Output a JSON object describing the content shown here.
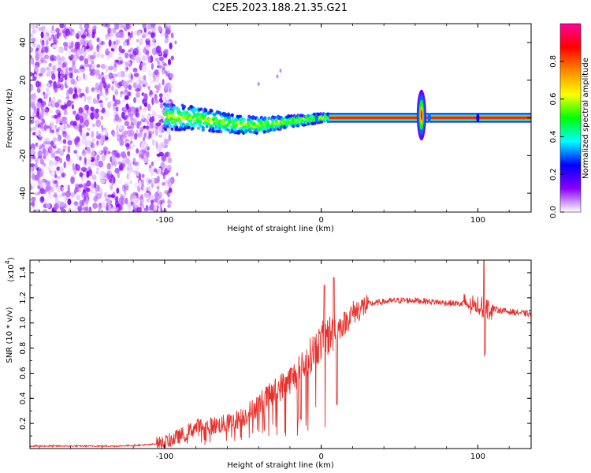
{
  "title": "C2E5.2023.188.21.35.G21",
  "colors": {
    "snr_line": "#e8302c",
    "axis": "#000000",
    "background": "#ffffff"
  },
  "chart_data": [
    {
      "type": "heatmap",
      "xlabel": "Height of straight line (km)",
      "ylabel": "Frequency (Hz)",
      "xlim": [
        -186,
        134
      ],
      "ylim": [
        -50,
        50
      ],
      "x_ticks": [
        {
          "v": -100,
          "label": "-100"
        },
        {
          "v": 0,
          "label": "0"
        },
        {
          "v": 100,
          "label": "100"
        }
      ],
      "y_ticks": [
        {
          "v": -40,
          "label": "-40"
        },
        {
          "v": -20,
          "label": "-20"
        },
        {
          "v": 0,
          "label": "0"
        },
        {
          "v": 20,
          "label": "20"
        },
        {
          "v": 40,
          "label": "40"
        }
      ],
      "colorbar": {
        "label": "Normalized spectral amplitude",
        "range": [
          0,
          1
        ],
        "ticks": [
          {
            "v": 0.0,
            "label": "0.0"
          },
          {
            "v": 0.2,
            "label": "0.2"
          },
          {
            "v": 0.4,
            "label": "0.4"
          },
          {
            "v": 0.6,
            "label": "0.6"
          },
          {
            "v": 0.8,
            "label": "0.8"
          }
        ],
        "colormap": [
          "#ffffff",
          "#8800ff",
          "#0000ff",
          "#00ffff",
          "#00ff00",
          "#ffff00",
          "#ff8800",
          "#ff0000",
          "#ff0099"
        ]
      },
      "features": {
        "noise_region_x": [
          -186,
          -95
        ],
        "signal_start_x": -100,
        "signal_track": [
          {
            "x": -100,
            "y": 0.5
          },
          {
            "x": -80,
            "y": 0
          },
          {
            "x": -60,
            "y": -3
          },
          {
            "x": -40,
            "y": -4
          },
          {
            "x": -20,
            "y": -2
          },
          {
            "x": 0,
            "y": 0
          },
          {
            "x": 60,
            "y": 0
          },
          {
            "x": 134,
            "y": 0
          }
        ],
        "burst_x": 64,
        "burst_y_range": [
          -12,
          15
        ]
      }
    },
    {
      "type": "line",
      "xlabel": "Height of straight line (km)",
      "ylabel": "SNR (10 * v/v)",
      "y_scale_label": "(x10",
      "y_scale_exp": "4",
      "y_multiplier": 10000,
      "xlim": [
        -186,
        134
      ],
      "ylim": [
        0,
        1.5
      ],
      "x_ticks": [
        {
          "v": -100,
          "label": "-100"
        },
        {
          "v": 0,
          "label": "0"
        },
        {
          "v": 100,
          "label": "100"
        }
      ],
      "y_ticks": [
        {
          "v": 0.2,
          "label": "0.2"
        },
        {
          "v": 0.4,
          "label": "0.4"
        },
        {
          "v": 0.6,
          "label": "0.6"
        },
        {
          "v": 0.8,
          "label": "0.8"
        },
        {
          "v": 1.0,
          "label": "1.0"
        },
        {
          "v": 1.2,
          "label": "1.2"
        },
        {
          "v": 1.4,
          "label": "1.4"
        }
      ],
      "series": [
        {
          "x": [
            -186,
            -160,
            -130,
            -110,
            -100,
            -90,
            -80,
            -70,
            -60,
            -50,
            -40,
            -30,
            -20,
            -15,
            -10,
            -5,
            0,
            5,
            10,
            15,
            20,
            30,
            40,
            50,
            60,
            70,
            80,
            90,
            100,
            105,
            110,
            120,
            134
          ],
          "y": [
            0.02,
            0.02,
            0.02,
            0.03,
            0.05,
            0.1,
            0.17,
            0.18,
            0.2,
            0.25,
            0.35,
            0.45,
            0.55,
            0.6,
            0.68,
            0.78,
            0.85,
            0.9,
            0.95,
            1.0,
            1.08,
            1.15,
            1.17,
            1.18,
            1.18,
            1.17,
            1.16,
            1.15,
            1.13,
            1.12,
            1.11,
            1.09,
            1.07
          ]
        }
      ]
    }
  ]
}
